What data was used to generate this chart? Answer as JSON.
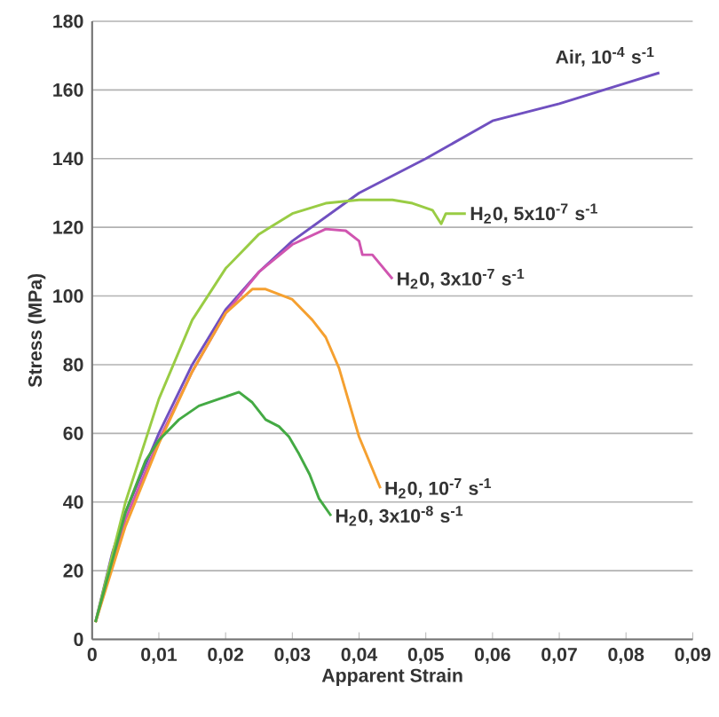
{
  "chart_data": {
    "type": "line",
    "xlabel": "Apparent Strain",
    "ylabel": "Stress (MPa)",
    "xlim": [
      0,
      0.09
    ],
    "ylim": [
      0,
      180
    ],
    "xticks": [
      0,
      {
        "value": 0.01,
        "label": "0,01"
      },
      {
        "value": 0.02,
        "label": "0,02"
      },
      {
        "value": 0.03,
        "label": "0,03"
      },
      {
        "value": 0.04,
        "label": "0,04"
      },
      {
        "value": 0.05,
        "label": "0,05"
      },
      {
        "value": 0.06,
        "label": "0,06"
      },
      {
        "value": 0.07,
        "label": "0,07"
      },
      {
        "value": 0.08,
        "label": "0,08"
      },
      {
        "value": 0.09,
        "label": "0,09"
      }
    ],
    "yticks": [
      0,
      20,
      40,
      60,
      80,
      100,
      120,
      140,
      160,
      180
    ],
    "grid": "y",
    "marker": "none",
    "line_style": "solid",
    "series": [
      {
        "name": "Air, 10$^{-4}$ s$^{-1}$",
        "color": "#7050c0",
        "x": [
          0.0005,
          0.003,
          0.005,
          0.01,
          0.015,
          0.02,
          0.025,
          0.03,
          0.04,
          0.05,
          0.06,
          0.07,
          0.08,
          0.085
        ],
        "values": [
          5,
          25,
          37,
          60,
          80,
          96,
          107,
          116,
          130,
          140,
          151,
          156,
          162,
          165
        ]
      },
      {
        "name": "H$_{2}$0, 5x10$^{-7}$ s$^{-1}$",
        "color": "#99cc44",
        "x": [
          0.0005,
          0.005,
          0.01,
          0.015,
          0.02,
          0.025,
          0.03,
          0.035,
          0.04,
          0.045,
          0.048,
          0.051,
          0.0523,
          0.053,
          0.056
        ],
        "values": [
          5,
          40,
          70,
          93,
          108,
          118,
          124,
          127,
          128,
          128,
          127,
          125,
          121,
          124,
          124
        ]
      },
      {
        "name": "H$_{2}$0, 3x10$^{-7}$ s$^{-1}$",
        "color": "#d055b0",
        "x": [
          0.0005,
          0.005,
          0.01,
          0.015,
          0.02,
          0.025,
          0.03,
          0.035,
          0.038,
          0.04,
          0.0405,
          0.042,
          0.045
        ],
        "values": [
          5,
          35,
          58,
          78,
          95,
          107,
          115,
          119.5,
          119,
          116,
          112,
          112,
          105
        ]
      },
      {
        "name": "H$_{2}$0, 10$^{-7}$ s$^{-1}$",
        "color": "#f5a030",
        "x": [
          0.0005,
          0.005,
          0.01,
          0.015,
          0.02,
          0.024,
          0.026,
          0.03,
          0.033,
          0.035,
          0.037,
          0.04,
          0.0432
        ],
        "values": [
          5,
          33,
          57,
          78,
          95,
          102,
          102,
          99,
          93,
          88,
          79,
          59,
          44
        ]
      },
      {
        "name": "H$_{2}$0, 3x10$^{-8}$ s$^{-1}$",
        "color": "#44aa44",
        "x": [
          0.0005,
          0.005,
          0.008,
          0.01,
          0.013,
          0.016,
          0.019,
          0.022,
          0.024,
          0.026,
          0.028,
          0.0295,
          0.031,
          0.0326,
          0.034,
          0.0358
        ],
        "values": [
          5,
          37,
          52,
          58,
          64,
          68,
          70,
          72,
          69,
          64,
          62,
          59,
          54,
          48,
          41,
          36
        ]
      }
    ]
  }
}
